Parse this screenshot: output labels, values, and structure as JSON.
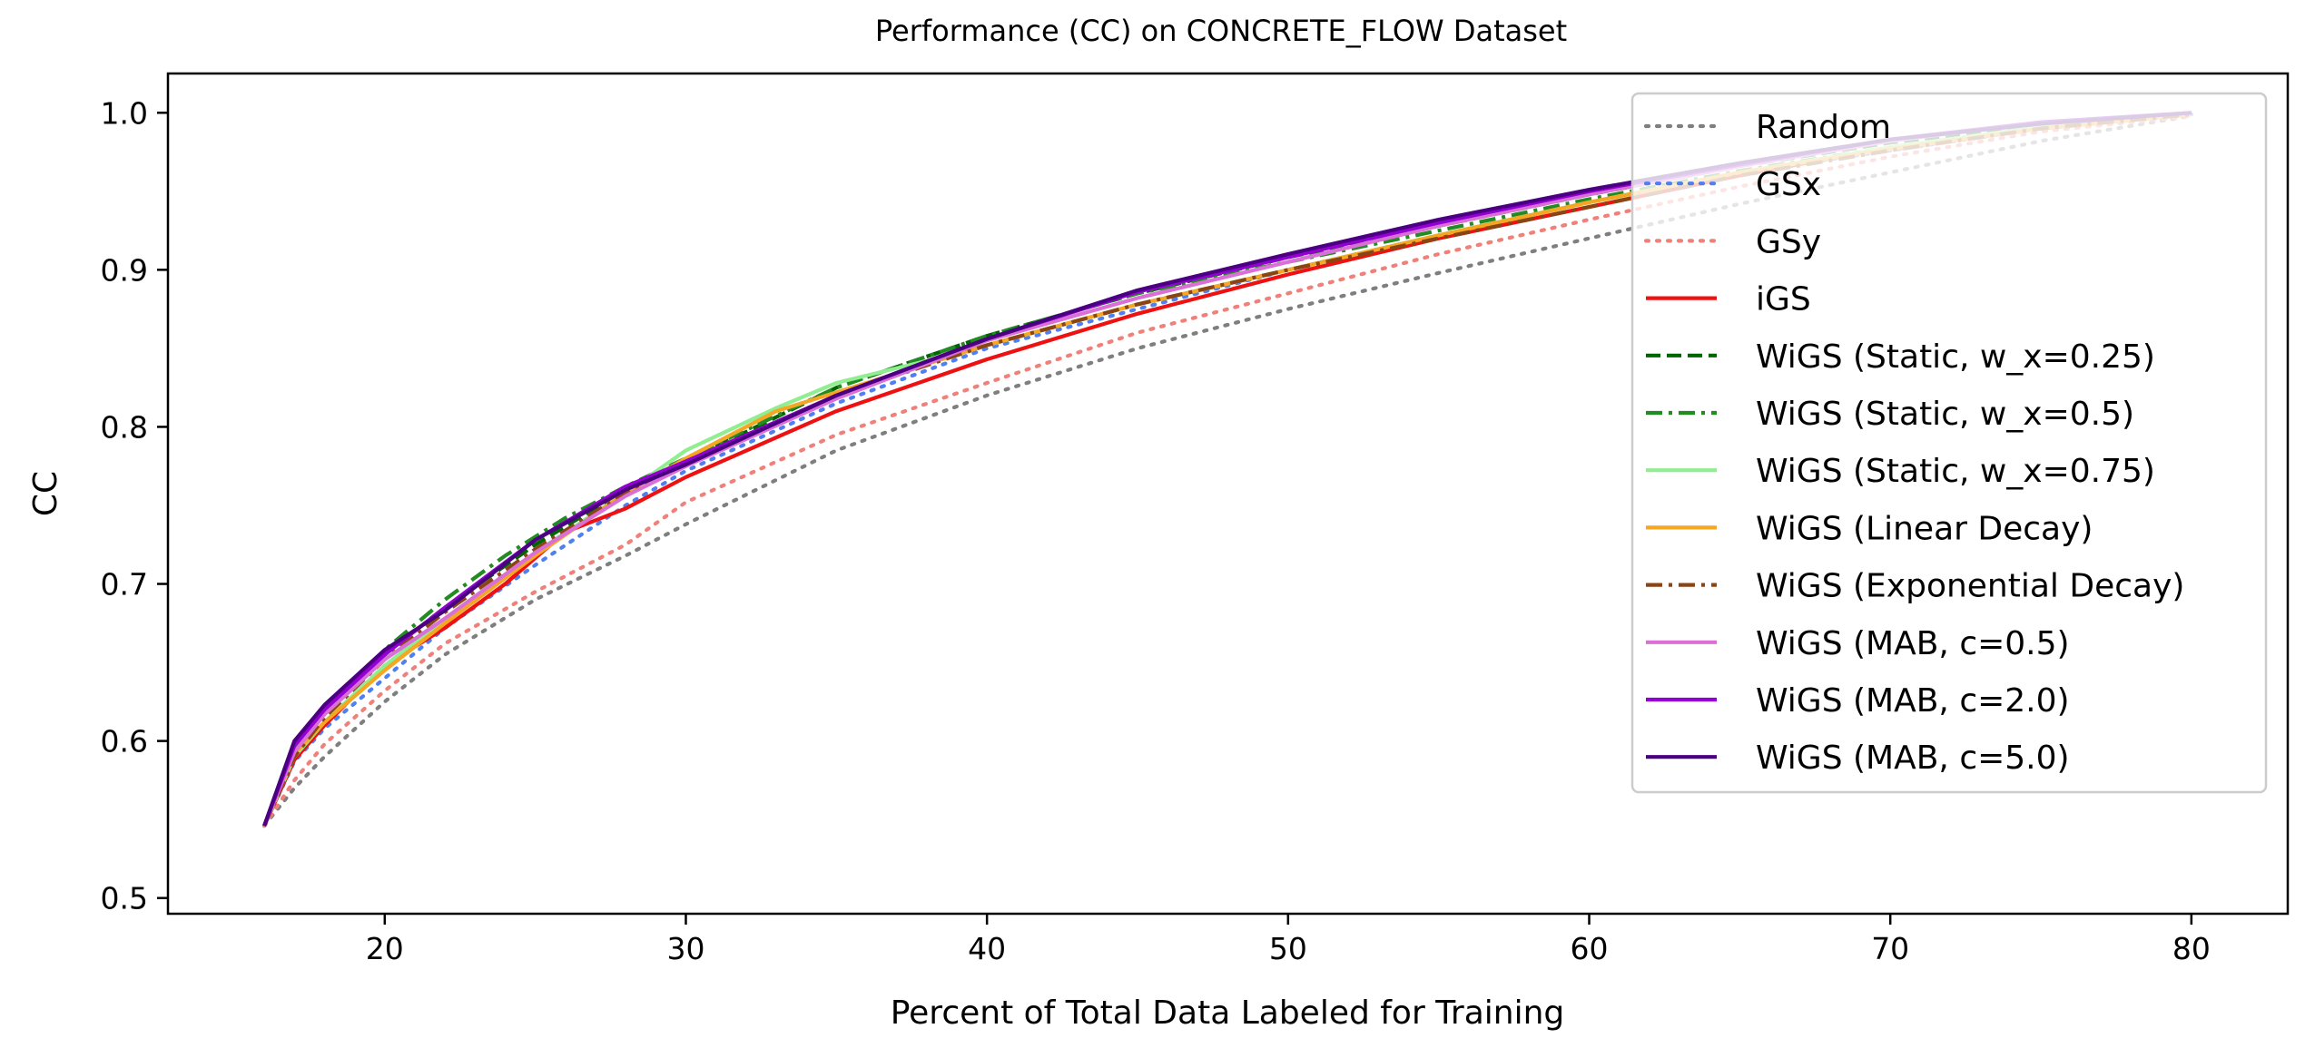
{
  "chart_data": {
    "type": "line",
    "title": "Performance (CC) on CONCRETE_FLOW Dataset",
    "xlabel": "Percent of Total Data Labeled for Training",
    "ylabel": "CC",
    "xlim": [
      12.8,
      83.2
    ],
    "ylim": [
      0.49,
      1.025
    ],
    "xticks": [
      20,
      30,
      40,
      50,
      60,
      70,
      80
    ],
    "yticks": [
      0.5,
      0.6,
      0.7,
      0.8,
      0.9,
      1.0
    ],
    "xtick_labels": [
      "20",
      "30",
      "40",
      "50",
      "60",
      "70",
      "80"
    ],
    "ytick_labels": [
      "0.5",
      "0.6",
      "0.7",
      "0.8",
      "0.9",
      "1.0"
    ],
    "grid": false,
    "legend_position": "upper right",
    "series": [
      {
        "name": "Random",
        "color": "#7f7f7f",
        "dash": "dotted",
        "x": [
          16,
          17,
          18,
          20,
          22,
          25,
          28,
          30,
          35,
          40,
          45,
          50,
          55,
          60,
          65,
          70,
          75,
          80
        ],
        "y": [
          0.546,
          0.57,
          0.59,
          0.625,
          0.655,
          0.69,
          0.718,
          0.738,
          0.785,
          0.82,
          0.85,
          0.875,
          0.898,
          0.92,
          0.942,
          0.962,
          0.982,
          0.998
        ]
      },
      {
        "name": "GSx",
        "color": "#4f7ff0",
        "dash": "dotted",
        "x": [
          16,
          17,
          18,
          20,
          22,
          25,
          28,
          30,
          35,
          40,
          45,
          50,
          55,
          60,
          65,
          70,
          75,
          80
        ],
        "y": [
          0.546,
          0.587,
          0.608,
          0.64,
          0.672,
          0.712,
          0.75,
          0.772,
          0.815,
          0.85,
          0.875,
          0.9,
          0.922,
          0.943,
          0.962,
          0.976,
          0.99,
          0.999
        ]
      },
      {
        "name": "GSy",
        "color": "#f0807a",
        "dash": "dotted",
        "x": [
          16,
          17,
          18,
          20,
          22,
          25,
          28,
          30,
          35,
          40,
          45,
          50,
          55,
          60,
          65,
          70,
          75,
          80
        ],
        "y": [
          0.546,
          0.575,
          0.598,
          0.632,
          0.662,
          0.695,
          0.725,
          0.752,
          0.795,
          0.828,
          0.86,
          0.885,
          0.91,
          0.932,
          0.953,
          0.972,
          0.988,
          0.998
        ]
      },
      {
        "name": "iGS",
        "color": "#ee1111",
        "dash": "solid",
        "x": [
          16,
          17,
          18,
          20,
          22,
          24,
          26,
          28,
          30,
          35,
          40,
          45,
          50,
          55,
          60,
          65,
          70,
          75,
          80
        ],
        "y": [
          0.546,
          0.588,
          0.61,
          0.648,
          0.672,
          0.7,
          0.733,
          0.748,
          0.768,
          0.81,
          0.843,
          0.872,
          0.897,
          0.92,
          0.94,
          0.96,
          0.978,
          0.99,
          0.999
        ]
      },
      {
        "name": "WiGS (Static, w_x=0.25)",
        "color": "#006400",
        "dash": "dashed",
        "x": [
          16,
          17,
          18,
          20,
          22,
          25,
          28,
          30,
          35,
          40,
          45,
          50,
          55,
          60,
          65,
          70,
          75,
          80
        ],
        "y": [
          0.546,
          0.595,
          0.618,
          0.655,
          0.685,
          0.725,
          0.76,
          0.778,
          0.825,
          0.858,
          0.885,
          0.908,
          0.928,
          0.948,
          0.966,
          0.981,
          0.992,
          1.0
        ]
      },
      {
        "name": "WiGS (Static, w_x=0.5)",
        "color": "#228b22",
        "dash": "dashdot",
        "x": [
          16,
          17,
          18,
          20,
          22,
          24,
          26,
          28,
          30,
          35,
          40,
          45,
          50,
          55,
          60,
          65,
          70,
          75,
          80
        ],
        "y": [
          0.546,
          0.59,
          0.615,
          0.658,
          0.69,
          0.718,
          0.742,
          0.762,
          0.78,
          0.825,
          0.858,
          0.885,
          0.905,
          0.925,
          0.945,
          0.963,
          0.978,
          0.991,
          0.999
        ]
      },
      {
        "name": "WiGS (Static, w_x=0.75)",
        "color": "#90ee90",
        "dash": "solid",
        "x": [
          16,
          17,
          18,
          20,
          22,
          25,
          28,
          30,
          33,
          35,
          38,
          40,
          45,
          50,
          55,
          60,
          65,
          70,
          75,
          80
        ],
        "y": [
          0.546,
          0.59,
          0.612,
          0.648,
          0.678,
          0.72,
          0.758,
          0.785,
          0.812,
          0.828,
          0.842,
          0.852,
          0.878,
          0.9,
          0.922,
          0.943,
          0.962,
          0.978,
          0.991,
          0.999
        ]
      },
      {
        "name": "WiGS (Linear Decay)",
        "color": "#f5a623",
        "dash": "solid",
        "x": [
          16,
          17,
          18,
          20,
          22,
          25,
          28,
          30,
          33,
          35,
          40,
          45,
          50,
          55,
          60,
          65,
          70,
          75,
          80
        ],
        "y": [
          0.546,
          0.592,
          0.612,
          0.645,
          0.675,
          0.718,
          0.758,
          0.78,
          0.81,
          0.822,
          0.852,
          0.878,
          0.9,
          0.922,
          0.943,
          0.962,
          0.977,
          0.99,
          0.999
        ]
      },
      {
        "name": "WiGS (Exponential Decay)",
        "color": "#8b4513",
        "dash": "dashdot",
        "x": [
          16,
          17,
          18,
          20,
          22,
          25,
          28,
          30,
          35,
          40,
          45,
          50,
          55,
          60,
          65,
          70,
          75,
          80
        ],
        "y": [
          0.546,
          0.59,
          0.615,
          0.652,
          0.682,
          0.722,
          0.758,
          0.777,
          0.82,
          0.852,
          0.878,
          0.9,
          0.92,
          0.94,
          0.96,
          0.976,
          0.99,
          0.999
        ]
      },
      {
        "name": "WiGS (MAB, c=0.5)",
        "color": "#da70d6",
        "dash": "solid",
        "x": [
          16,
          17,
          18,
          20,
          22,
          25,
          28,
          30,
          35,
          40,
          45,
          50,
          55,
          60,
          65,
          70,
          75,
          80
        ],
        "y": [
          0.546,
          0.593,
          0.617,
          0.652,
          0.678,
          0.72,
          0.756,
          0.775,
          0.818,
          0.855,
          0.882,
          0.905,
          0.928,
          0.948,
          0.966,
          0.982,
          0.994,
          1.0
        ]
      },
      {
        "name": "WiGS (MAB, c=2.0)",
        "color": "#9400d3",
        "dash": "solid",
        "x": [
          16,
          17,
          18,
          20,
          22,
          25,
          28,
          30,
          35,
          40,
          45,
          50,
          55,
          60,
          65,
          70,
          75,
          80
        ],
        "y": [
          0.546,
          0.597,
          0.62,
          0.655,
          0.685,
          0.728,
          0.762,
          0.778,
          0.82,
          0.856,
          0.886,
          0.908,
          0.93,
          0.95,
          0.967,
          0.983,
          0.994,
          1.0
        ]
      },
      {
        "name": "WiGS (MAB, c=5.0)",
        "color": "#4b0082",
        "dash": "solid",
        "x": [
          16,
          17,
          18,
          20,
          22,
          25,
          28,
          30,
          35,
          40,
          45,
          50,
          55,
          60,
          65,
          70,
          75,
          80
        ],
        "y": [
          0.546,
          0.6,
          0.623,
          0.658,
          0.683,
          0.728,
          0.76,
          0.776,
          0.82,
          0.856,
          0.887,
          0.91,
          0.932,
          0.951,
          0.968,
          0.983,
          0.993,
          1.0
        ]
      }
    ]
  }
}
